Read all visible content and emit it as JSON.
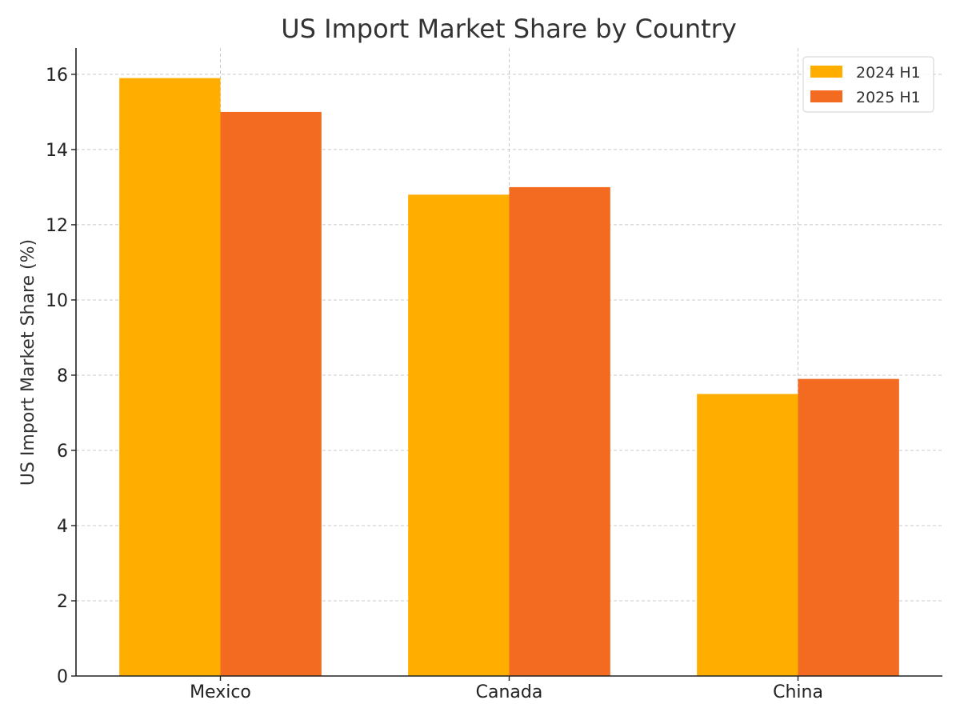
{
  "chart_data": {
    "type": "bar",
    "title": "US Import Market Share by Country",
    "xlabel": "",
    "ylabel": "US Import Market Share (%)",
    "categories": [
      "Mexico",
      "Canada",
      "China"
    ],
    "series": [
      {
        "name": "2024 H1",
        "values": [
          15.9,
          12.8,
          7.5
        ],
        "color": "#FFAE00"
      },
      {
        "name": "2025 H1",
        "values": [
          15.0,
          13.0,
          7.9
        ],
        "color": "#F26B21"
      }
    ],
    "ylim": [
      0,
      16.7
    ],
    "yticks": [
      0,
      2,
      4,
      6,
      8,
      10,
      12,
      14,
      16
    ],
    "grid": true,
    "legend_position": "top-right"
  }
}
